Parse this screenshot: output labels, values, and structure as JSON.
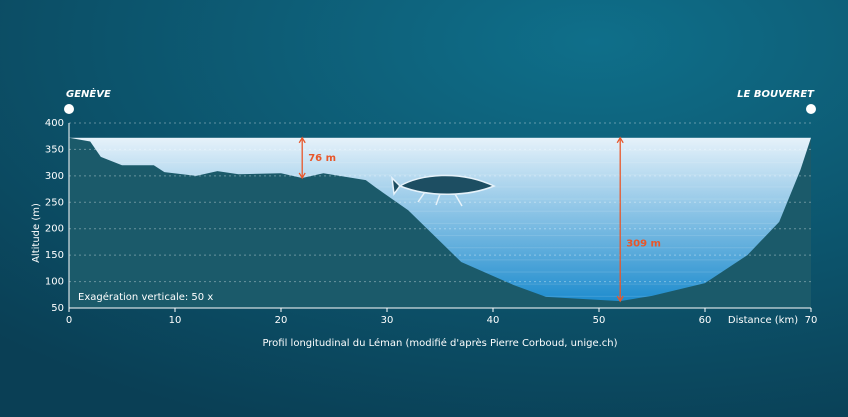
{
  "chart_data": {
    "type": "area",
    "xlabel": "Distance (km)",
    "ylabel": "Altitude (m)",
    "caption": "Profil longitudinal du Léman (modifié d'après Pierre Corboud, unige.ch)",
    "note": "Exagération verticale: 50 x",
    "x": [
      0,
      2,
      3,
      5,
      8,
      9,
      12,
      14,
      16,
      20,
      22,
      24,
      28,
      29,
      32,
      37,
      42,
      45,
      52,
      55,
      60,
      64,
      67,
      69,
      70
    ],
    "values": [
      372,
      365,
      336,
      320,
      320,
      307,
      300,
      309,
      303,
      305,
      296,
      305,
      292,
      277,
      235,
      137,
      93,
      71,
      63,
      73,
      97,
      150,
      213,
      311,
      372
    ],
    "surface": 372,
    "water_color_top": "#e6f2fa",
    "water_color_bottom": "#1688cc",
    "land_color": "#1b5a6a",
    "annotation_color": "#e8572a",
    "annotations": [
      {
        "x": 22,
        "top": 372,
        "bottom": 296,
        "depth": 76,
        "label": "76 m"
      },
      {
        "x": 52,
        "top": 372,
        "bottom": 63,
        "depth": 309,
        "label": "309 m"
      }
    ],
    "locations": [
      {
        "name": "GENÈVE",
        "x": 0
      },
      {
        "name": "LE BOUVERET",
        "x": 70
      }
    ],
    "xlim": [
      0,
      70
    ],
    "ylim": [
      50,
      400
    ],
    "xticks": [
      0,
      10,
      20,
      30,
      40,
      50,
      60,
      70
    ],
    "yticks": [
      50,
      100,
      150,
      200,
      250,
      300,
      350,
      400
    ],
    "grid": true
  }
}
